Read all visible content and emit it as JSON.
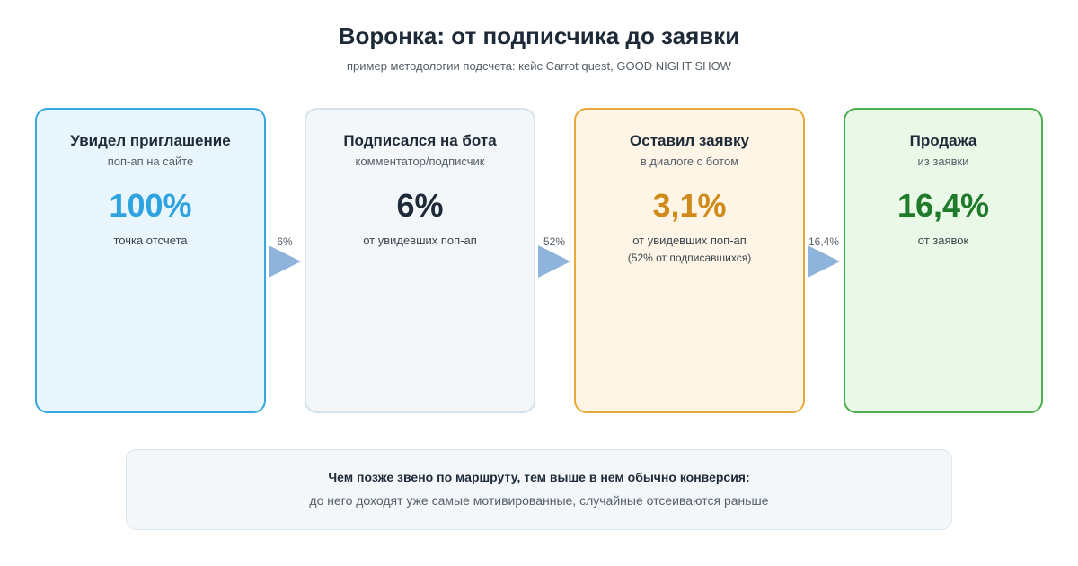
{
  "header": {
    "title": "Воронка: от подписчика до заявки",
    "subtitle": "пример методологии подсчета: кейс Carrot quest, GOOD NIGHT SHOW"
  },
  "stages": [
    {
      "title": "Увидел приглашение",
      "subtitle": "поп-ап на сайте",
      "value": "100%",
      "note": "точка отсчета",
      "note2": ""
    },
    {
      "title": "Подписался на бота",
      "subtitle": "комментатор/подписчик",
      "value": "6%",
      "note": "от увидевших поп-ап",
      "note2": ""
    },
    {
      "title": "Оставил заявку",
      "subtitle": "в диалоге с ботом",
      "value": "3,1%",
      "note": "от увидевших поп-ап",
      "note2": "(52% от подписавшихся)"
    },
    {
      "title": "Продажа",
      "subtitle": "из заявки",
      "value": "16,4%",
      "note": "от заявок",
      "note2": ""
    }
  ],
  "transitions": [
    "6%",
    "52%",
    "16,4%"
  ],
  "footnote": {
    "line1": "Чем позже звено по маршруту, тем выше в нем обычно конверсия:",
    "line2": "до него доходят уже самые мотивированные, случайные отсеиваются раньше"
  },
  "colors": {
    "stage1_accent": "#2fa3e0",
    "stage3_accent": "#d08a1a",
    "stage4_accent": "#1f7a2a",
    "arrow": "#8fb4dc"
  }
}
